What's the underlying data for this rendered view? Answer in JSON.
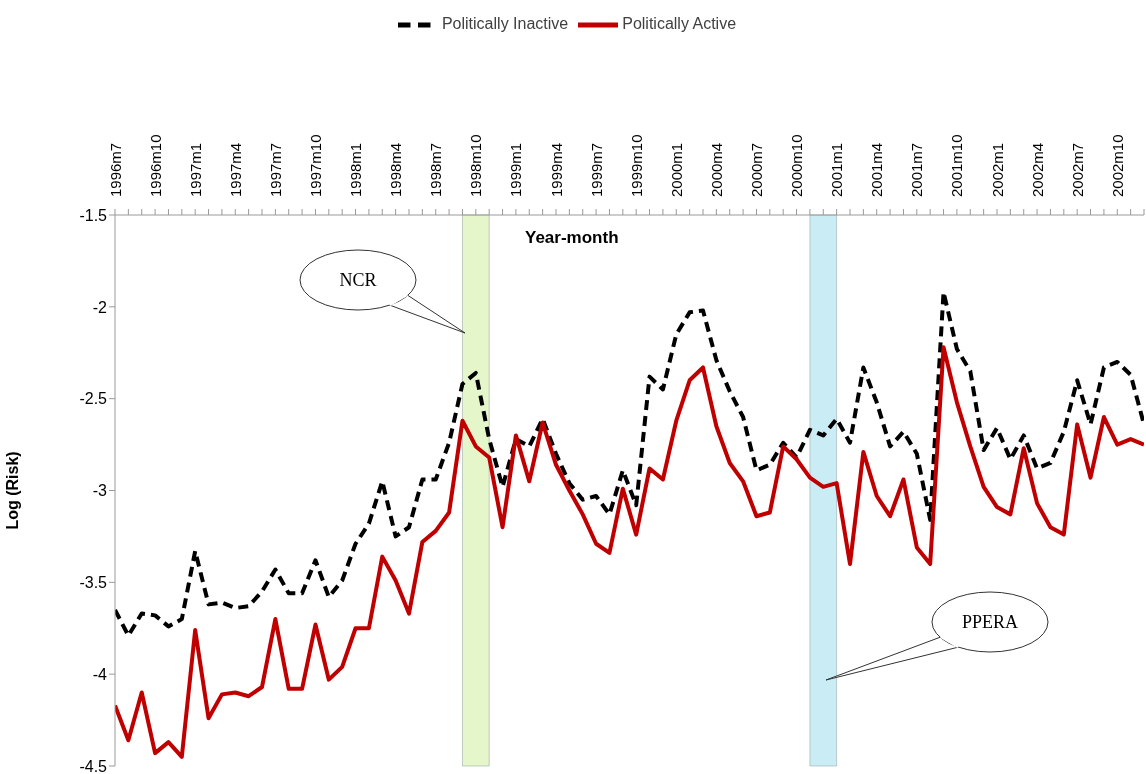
{
  "chart_data": {
    "type": "line",
    "xlabel": "Year-month",
    "ylabel": "Log (Risk)",
    "x": [
      "1996-07",
      "1996-08",
      "1996-09",
      "1996-10",
      "1996-11",
      "1996-12",
      "1997-01",
      "1997-02",
      "1997-03",
      "1997-04",
      "1997-05",
      "1997-06",
      "1997-07",
      "1997-08",
      "1997-09",
      "1997-10",
      "1997-11",
      "1997-12",
      "1998-01",
      "1998-02",
      "1998-03",
      "1998-04",
      "1998-05",
      "1998-06",
      "1998-07",
      "1998-08",
      "1998-09",
      "1998-10",
      "1998-11",
      "1998-12",
      "1999-01",
      "1999-02",
      "1999-03",
      "1999-04",
      "1999-05",
      "1999-06",
      "1999-07",
      "1999-08",
      "1999-09",
      "1999-10",
      "1999-11",
      "1999-12",
      "2000-01",
      "2000-02",
      "2000-03",
      "2000-04",
      "2000-05",
      "2000-06",
      "2000-07",
      "2000-08",
      "2000-09",
      "2000-10",
      "2000-11",
      "2000-12",
      "2001-01",
      "2001-02",
      "2001-03",
      "2001-04",
      "2001-05",
      "2001-06",
      "2001-07",
      "2001-08",
      "2001-09",
      "2001-10",
      "2001-11",
      "2001-12",
      "2002-01",
      "2002-02",
      "2002-03",
      "2002-04",
      "2002-05",
      "2002-06",
      "2002-07",
      "2002-08",
      "2002-09",
      "2002-10",
      "2002-11",
      "2002-12"
    ],
    "series": [
      {
        "name": "Politically Inactive",
        "color": "#000000",
        "line_style": "dashed",
        "values": [
          -3.65,
          -3.79,
          -3.67,
          -3.68,
          -3.74,
          -3.7,
          -3.33,
          -3.62,
          -3.61,
          -3.64,
          -3.63,
          -3.55,
          -3.43,
          -3.56,
          -3.56,
          -3.38,
          -3.58,
          -3.49,
          -3.29,
          -3.18,
          -2.95,
          -3.25,
          -3.2,
          -2.94,
          -2.94,
          -2.74,
          -2.42,
          -2.36,
          -2.72,
          -2.98,
          -2.72,
          -2.76,
          -2.61,
          -2.8,
          -2.96,
          -3.05,
          -3.03,
          -3.13,
          -2.89,
          -3.08,
          -2.38,
          -2.45,
          -2.15,
          -2.03,
          -2.02,
          -2.29,
          -2.46,
          -2.6,
          -2.89,
          -2.86,
          -2.74,
          -2.82,
          -2.67,
          -2.7,
          -2.61,
          -2.74,
          -2.33,
          -2.52,
          -2.76,
          -2.68,
          -2.8,
          -3.16,
          -1.92,
          -2.23,
          -2.35,
          -2.78,
          -2.66,
          -2.83,
          -2.7,
          -2.88,
          -2.85,
          -2.68,
          -2.4,
          -2.64,
          -2.33,
          -2.3,
          -2.37,
          -2.64
        ]
      },
      {
        "name": "Politically Active",
        "color": "#c00000",
        "line_style": "solid",
        "values": [
          -4.17,
          -4.36,
          -4.1,
          -4.43,
          -4.37,
          -4.45,
          -3.76,
          -4.24,
          -4.11,
          -4.1,
          -4.12,
          -4.07,
          -3.7,
          -4.08,
          -4.08,
          -3.73,
          -4.03,
          -3.96,
          -3.75,
          -3.75,
          -3.36,
          -3.49,
          -3.67,
          -3.28,
          -3.22,
          -3.12,
          -2.62,
          -2.76,
          -2.82,
          -3.2,
          -2.7,
          -2.95,
          -2.63,
          -2.86,
          -3.0,
          -3.13,
          -3.29,
          -3.34,
          -2.99,
          -3.24,
          -2.88,
          -2.94,
          -2.62,
          -2.4,
          -2.33,
          -2.65,
          -2.85,
          -2.95,
          -3.14,
          -3.12,
          -2.76,
          -2.83,
          -2.93,
          -2.98,
          -2.96,
          -3.4,
          -2.79,
          -3.03,
          -3.14,
          -2.94,
          -3.31,
          -3.4,
          -2.22,
          -2.52,
          -2.76,
          -2.98,
          -3.09,
          -3.13,
          -2.77,
          -3.07,
          -3.2,
          -3.24,
          -2.64,
          -2.93,
          -2.6,
          -2.75,
          -2.72,
          -2.75
        ]
      }
    ],
    "xlim": [
      "1996-07",
      "2002-12"
    ],
    "xticks": [
      {
        "value": "1996-07",
        "label": "1996m7"
      },
      {
        "value": "1996-08",
        "label": null
      },
      {
        "value": "1996-09",
        "label": null
      },
      {
        "value": "1996-10",
        "label": "1996m10"
      },
      {
        "value": "1996-11",
        "label": null
      },
      {
        "value": "1996-12",
        "label": null
      },
      {
        "value": "1997-01",
        "label": "1997m1"
      },
      {
        "value": "1997-02",
        "label": null
      },
      {
        "value": "1997-03",
        "label": null
      },
      {
        "value": "1997-04",
        "label": "1997m4"
      },
      {
        "value": "1997-05",
        "label": null
      },
      {
        "value": "1997-06",
        "label": null
      },
      {
        "value": "1997-07",
        "label": "1997m7"
      },
      {
        "value": "1997-08",
        "label": null
      },
      {
        "value": "1997-09",
        "label": null
      },
      {
        "value": "1997-10",
        "label": "1997m10"
      },
      {
        "value": "1997-11",
        "label": null
      },
      {
        "value": "1997-12",
        "label": null
      },
      {
        "value": "1998-01",
        "label": "1998m1"
      },
      {
        "value": "1998-02",
        "label": null
      },
      {
        "value": "1998-03",
        "label": null
      },
      {
        "value": "1998-04",
        "label": "1998m4"
      },
      {
        "value": "1998-05",
        "label": null
      },
      {
        "value": "1998-06",
        "label": null
      },
      {
        "value": "1998-07",
        "label": "1998m7"
      },
      {
        "value": "1998-08",
        "label": null
      },
      {
        "value": "1998-09",
        "label": null
      },
      {
        "value": "1998-10",
        "label": "1998m10"
      },
      {
        "value": "1998-11",
        "label": null
      },
      {
        "value": "1998-12",
        "label": null
      },
      {
        "value": "1999-01",
        "label": "1999m1"
      },
      {
        "value": "1999-02",
        "label": null
      },
      {
        "value": "1999-03",
        "label": null
      },
      {
        "value": "1999-04",
        "label": "1999m4"
      },
      {
        "value": "1999-05",
        "label": null
      },
      {
        "value": "1999-06",
        "label": null
      },
      {
        "value": "1999-07",
        "label": "1999m7"
      },
      {
        "value": "1999-08",
        "label": null
      },
      {
        "value": "1999-09",
        "label": null
      },
      {
        "value": "1999-10",
        "label": "1999m10"
      },
      {
        "value": "1999-11",
        "label": null
      },
      {
        "value": "1999-12",
        "label": null
      },
      {
        "value": "2000-01",
        "label": "2000m1"
      },
      {
        "value": "2000-02",
        "label": null
      },
      {
        "value": "2000-03",
        "label": null
      },
      {
        "value": "2000-04",
        "label": "2000m4"
      },
      {
        "value": "2000-05",
        "label": null
      },
      {
        "value": "2000-06",
        "label": null
      },
      {
        "value": "2000-07",
        "label": "2000m7"
      },
      {
        "value": "2000-08",
        "label": null
      },
      {
        "value": "2000-09",
        "label": null
      },
      {
        "value": "2000-10",
        "label": "2000m10"
      },
      {
        "value": "2000-11",
        "label": null
      },
      {
        "value": "2000-12",
        "label": null
      },
      {
        "value": "2001-01",
        "label": "2001m1"
      },
      {
        "value": "2001-02",
        "label": null
      },
      {
        "value": "2001-03",
        "label": null
      },
      {
        "value": "2001-04",
        "label": "2001m4"
      },
      {
        "value": "2001-05",
        "label": null
      },
      {
        "value": "2001-06",
        "label": null
      },
      {
        "value": "2001-07",
        "label": "2001m7"
      },
      {
        "value": "2001-08",
        "label": null
      },
      {
        "value": "2001-09",
        "label": null
      },
      {
        "value": "2001-10",
        "label": "2001m10"
      },
      {
        "value": "2001-11",
        "label": null
      },
      {
        "value": "2001-12",
        "label": null
      },
      {
        "value": "2002-01",
        "label": "2002m1"
      },
      {
        "value": "2002-02",
        "label": null
      },
      {
        "value": "2002-03",
        "label": null
      },
      {
        "value": "2002-04",
        "label": "2002m4"
      },
      {
        "value": "2002-05",
        "label": null
      },
      {
        "value": "2002-06",
        "label": null
      },
      {
        "value": "2002-07",
        "label": "2002m7"
      },
      {
        "value": "2002-08",
        "label": null
      },
      {
        "value": "2002-09",
        "label": null
      },
      {
        "value": "2002-10",
        "label": "2002m10"
      },
      {
        "value": "2002-11",
        "label": null
      },
      {
        "value": "2002-12",
        "label": null
      }
    ],
    "ylim": [
      -4.5,
      -1.5
    ],
    "yticks": [
      -4.5,
      -4,
      -3.5,
      -3,
      -2.5,
      -2,
      -1.5
    ],
    "bands": [
      {
        "axis": "x",
        "from": "1998-09",
        "to": "1998-11",
        "color": "#d6f0a8"
      },
      {
        "axis": "x",
        "from": "2000-11",
        "to": "2001-01",
        "color": "#a6e0ec"
      }
    ],
    "annotations": [
      "NCR",
      "PPERA"
    ],
    "legend": "top",
    "grid": false,
    "marker": "none"
  }
}
